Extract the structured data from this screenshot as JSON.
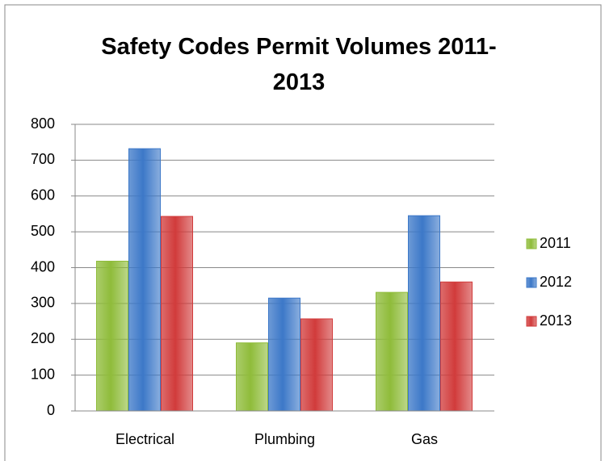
{
  "chart_data": {
    "type": "bar",
    "title": "Safety Codes Permit Volumes 2011-2013",
    "categories": [
      "Electrical",
      "Plumbing",
      "Gas"
    ],
    "series": [
      {
        "name": "2011",
        "color": "#8fbc3a",
        "values": [
          418,
          190,
          331
        ]
      },
      {
        "name": "2012",
        "color": "#3c78c8",
        "values": [
          732,
          315,
          545
        ]
      },
      {
        "name": "2013",
        "color": "#d13b3b",
        "values": [
          543,
          257,
          360
        ]
      }
    ],
    "ylim": [
      0,
      800
    ],
    "yticks": [
      0,
      100,
      200,
      300,
      400,
      500,
      600,
      700,
      800
    ],
    "grid": true,
    "legend": "right"
  }
}
